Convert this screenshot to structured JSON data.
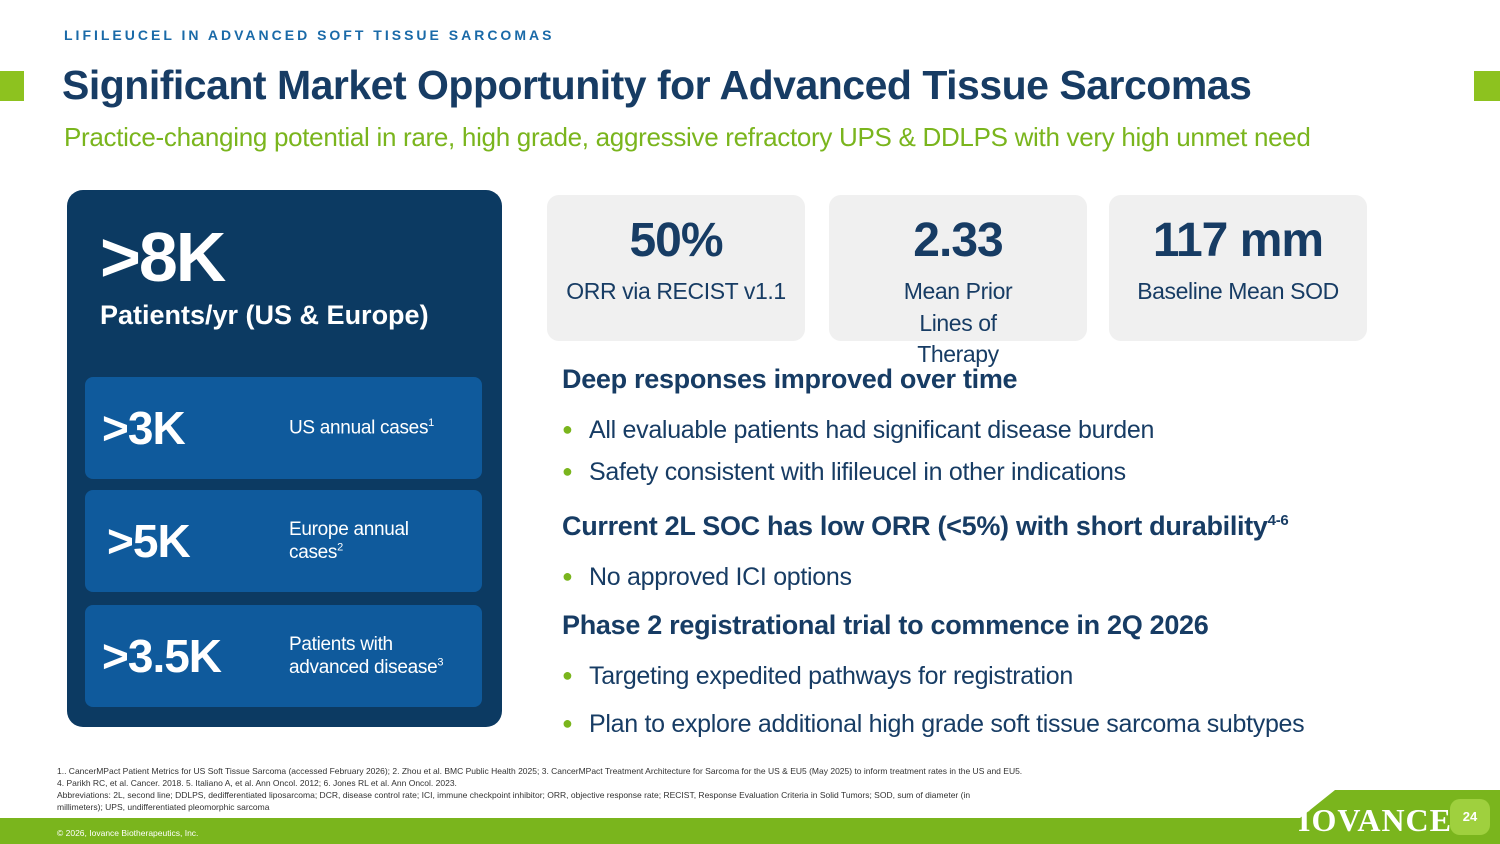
{
  "header": {
    "eyebrow": "LIFILEUCEL IN ADVANCED SOFT TISSUE SARCOMAS",
    "title": "Significant Market Opportunity for Advanced Tissue Sarcomas",
    "subtitle": "Practice-changing potential in rare, high grade, aggressive refractory UPS & DDLPS with very high unmet need"
  },
  "left_panel": {
    "big_value": ">8K",
    "big_label": "Patients/yr (US & Europe)",
    "rows": [
      {
        "value": ">3K",
        "label": "US annual cases",
        "sup": "1"
      },
      {
        "value": ">5K",
        "label": "Europe annual cases",
        "sup": "2"
      },
      {
        "value": ">3.5K",
        "label": "Patients with advanced disease",
        "sup": "3"
      }
    ]
  },
  "metrics": [
    {
      "value": "50%",
      "caption": "ORR via RECIST v1.1"
    },
    {
      "value": "2.33",
      "caption": "Mean Prior Lines of Therapy"
    },
    {
      "value": "117 mm",
      "caption": "Baseline Mean SOD"
    }
  ],
  "sections": [
    {
      "heading": "Deep responses improved over time",
      "heading_sup": "",
      "bullets": [
        "All evaluable patients had significant disease burden",
        "Safety consistent with lifileucel in other indications"
      ]
    },
    {
      "heading": "Current 2L SOC has low ORR (<5%) with short durability",
      "heading_sup": "4-6",
      "bullets": [
        "No approved ICI options"
      ]
    },
    {
      "heading": "Phase 2 registrational trial to commence in 2Q 2026",
      "heading_sup": "",
      "bullets": [
        "Targeting expedited pathways for registration",
        "Plan to explore additional high grade soft tissue sarcoma subtypes"
      ]
    }
  ],
  "footnotes": [
    "1.. CancerMPact Patient Metrics for US Soft Tissue Sarcoma (accessed February 2026); 2. Zhou et al. BMC Public Health 2025; 3. CancerMPact Treatment Architecture for Sarcoma for the US & EU5 (May 2025) to inform treatment rates in the US and EU5.",
    "4. Parikh RC, et al. Cancer. 2018. 5. Italiano A, et al. Ann Oncol. 2012; 6. Jones RL et al. Ann Oncol. 2023.",
    "Abbreviations: 2L, second line; DDLPS, dedifferentiated liposarcoma; DCR, disease control rate; ICI, immune checkpoint inhibitor; ORR, objective response rate; RECIST, Response Evaluation Criteria in Solid Tumors; SOD, sum of diameter (in",
    "millimeters); UPS, undifferentiated pleomorphic sarcoma"
  ],
  "footer": {
    "copyright": "© 2026, Iovance Biotherapeutics, Inc.",
    "logo": "IOVANCE",
    "page_number": "24"
  },
  "colors": {
    "navy": "#173c64",
    "panel": "#0c3a62",
    "panel_row": "#0f5a9c",
    "green": "#7ab51d",
    "card_bg": "#f0f0f0"
  }
}
